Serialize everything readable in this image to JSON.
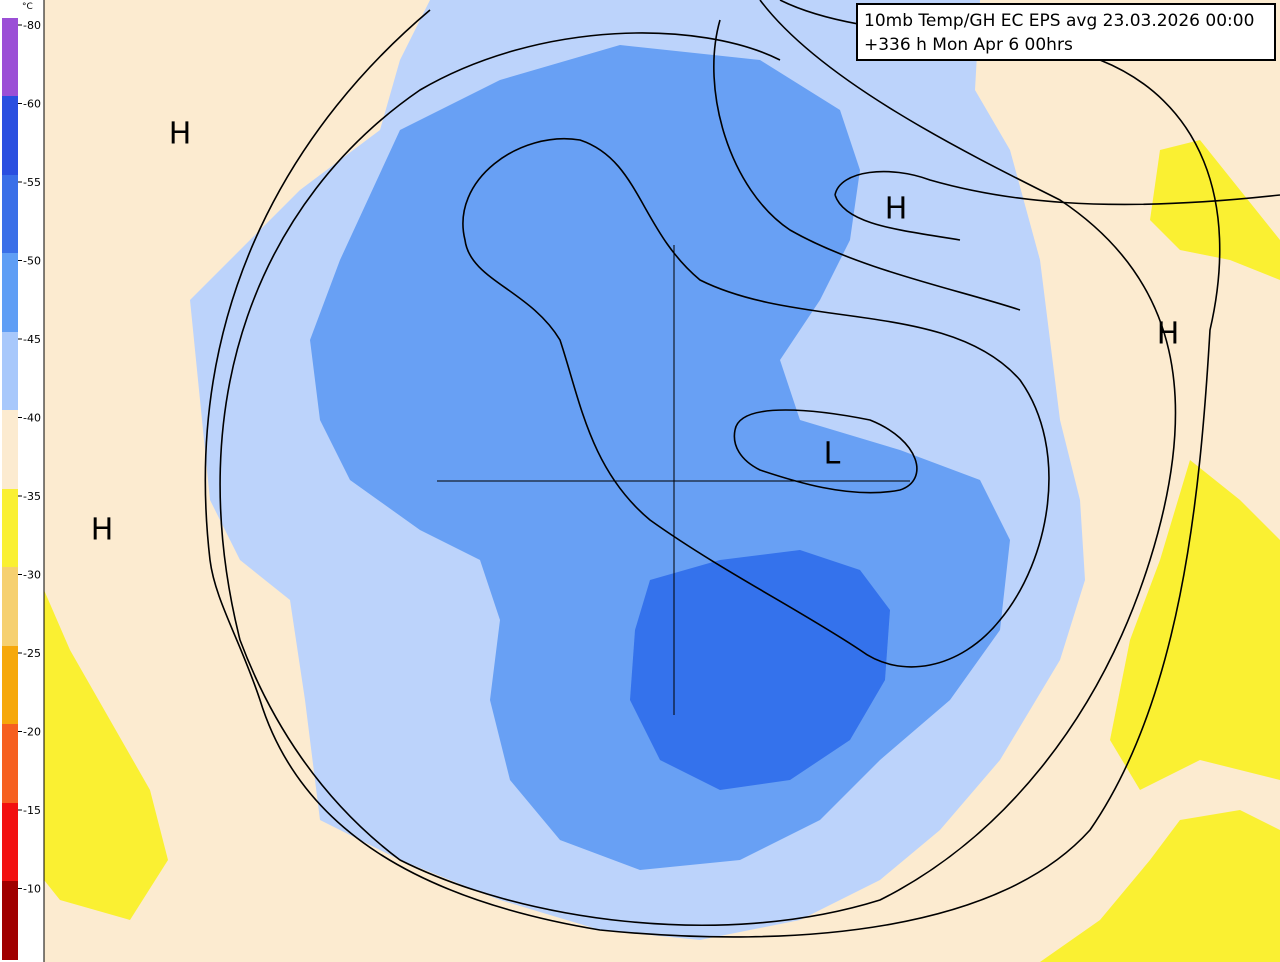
{
  "legend": {
    "unit": "°C",
    "labels": [
      -80,
      -60,
      -55,
      -50,
      -45,
      -40,
      -35,
      -30,
      -25,
      -20,
      -15,
      -10
    ]
  },
  "header": {
    "line1": "10mb Temp/GH EC EPS avg 23.03.2026 00:00",
    "line2": "+336 h Mon Apr 6 00hrs"
  },
  "markers": [
    {
      "label": "H"
    },
    {
      "label": "H"
    },
    {
      "label": "H"
    },
    {
      "label": "H"
    },
    {
      "label": "L"
    }
  ]
}
